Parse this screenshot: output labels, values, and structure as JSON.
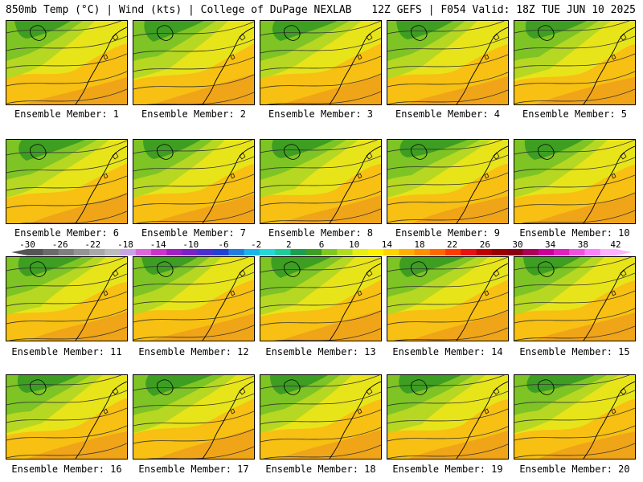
{
  "header": {
    "left": "850mb Temp (°C) | Wind (kts) | College of DuPage NEXLAB",
    "right": "12Z GEFS | F054 Valid: 18Z TUE JUN 10 2025"
  },
  "panels": [
    {
      "label": "Ensemble Member: 1"
    },
    {
      "label": "Ensemble Member: 2"
    },
    {
      "label": "Ensemble Member: 3"
    },
    {
      "label": "Ensemble Member: 4"
    },
    {
      "label": "Ensemble Member: 5"
    },
    {
      "label": "Ensemble Member: 6"
    },
    {
      "label": "Ensemble Member: 7"
    },
    {
      "label": "Ensemble Member: 8"
    },
    {
      "label": "Ensemble Member: 9"
    },
    {
      "label": "Ensemble Member: 10"
    },
    {
      "label": "Ensemble Member: 11"
    },
    {
      "label": "Ensemble Member: 12"
    },
    {
      "label": "Ensemble Member: 13"
    },
    {
      "label": "Ensemble Member: 14"
    },
    {
      "label": "Ensemble Member: 15"
    },
    {
      "label": "Ensemble Member: 16"
    },
    {
      "label": "Ensemble Member: 17"
    },
    {
      "label": "Ensemble Member: 18"
    },
    {
      "label": "Ensemble Member: 19"
    },
    {
      "label": "Ensemble Member: 20"
    }
  ],
  "colorbar": {
    "labels": [
      "-30",
      "-26",
      "-22",
      "-18",
      "-14",
      "-10",
      "-6",
      "-2",
      "2",
      "6",
      "10",
      "14",
      "18",
      "22",
      "26",
      "30",
      "34",
      "38",
      "42"
    ],
    "colors": [
      "#555555",
      "#6b6b6b",
      "#7f7f7f",
      "#949494",
      "#a8a8a8",
      "#bcbcbc",
      "#c7a3e6",
      "#dd66dd",
      "#cc33cc",
      "#a020c0",
      "#7a22c8",
      "#4b2fd0",
      "#2040d8",
      "#1f7de0",
      "#19b5e8",
      "#25d8d8",
      "#22cc99",
      "#1aa050",
      "#3aa020",
      "#7fc820",
      "#b0dd20",
      "#e8ee10",
      "#fff000",
      "#ffd200",
      "#ffb000",
      "#ff9000",
      "#ff6a00",
      "#ff3a00",
      "#e81010",
      "#c00000",
      "#990000",
      "#880011",
      "#aa0055",
      "#cc0099",
      "#e020c0",
      "#f050e0",
      "#ff80ff",
      "#ffb0ff"
    ]
  }
}
